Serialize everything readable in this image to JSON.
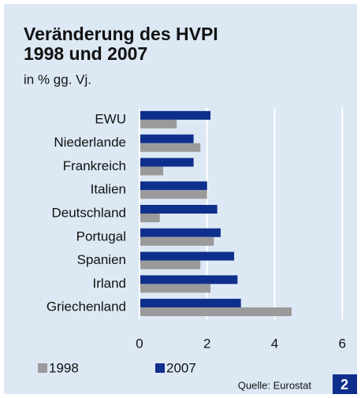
{
  "chart_data": {
    "type": "hbar",
    "title": [
      "Veränderung des HVPI",
      "1998 und 2007"
    ],
    "subtitle": "in % gg. Vj.",
    "categories": [
      "EWU",
      "Niederlande",
      "Frankreich",
      "Italien",
      "Deutschland",
      "Portugal",
      "Spanien",
      "Irland",
      "Griechenland"
    ],
    "series": [
      {
        "name": "2007",
        "color": "#0f2f8c",
        "values": [
          2.1,
          1.6,
          1.6,
          2.0,
          2.3,
          2.4,
          2.8,
          2.9,
          3.0
        ]
      },
      {
        "name": "1998",
        "color": "#9a9a9a",
        "values": [
          1.1,
          1.8,
          0.7,
          2.0,
          0.6,
          2.2,
          1.8,
          2.1,
          4.5
        ]
      }
    ],
    "xlim": [
      0,
      6.25
    ],
    "xticks": [
      0,
      2,
      4,
      6
    ],
    "grid": true,
    "legend": [
      "1998",
      "2007"
    ],
    "source": "Quelle: Eurostat",
    "badge": "2"
  }
}
